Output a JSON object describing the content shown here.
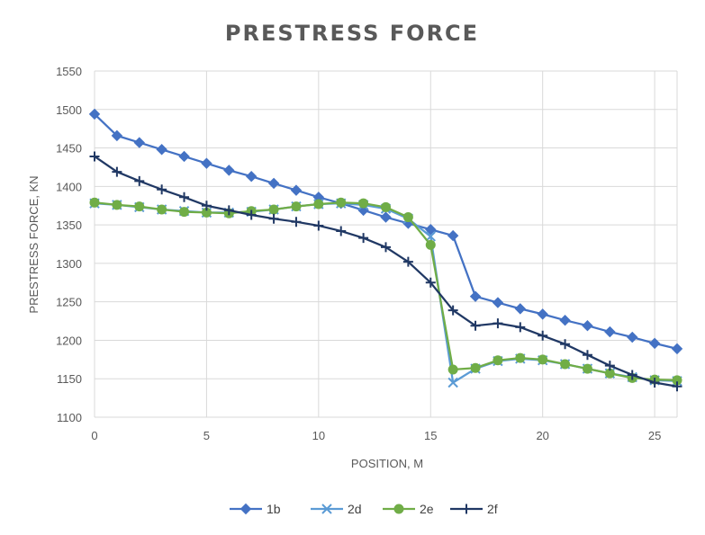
{
  "chart_data": {
    "type": "line",
    "title": "PRESTRESS FORCE",
    "xlabel": "POSITION, M",
    "ylabel": "PRESTRESS FORCE, KN",
    "xlim": [
      0,
      26
    ],
    "ylim": [
      1100,
      1550
    ],
    "x_ticks": [
      0,
      5,
      10,
      15,
      20,
      25
    ],
    "y_ticks": [
      1100,
      1150,
      1200,
      1250,
      1300,
      1350,
      1400,
      1450,
      1500,
      1550
    ],
    "grid": true,
    "legend_position": "bottom",
    "x": [
      0,
      1,
      2,
      3,
      4,
      5,
      6,
      7,
      8,
      9,
      10,
      11,
      12,
      13,
      14,
      15,
      16,
      17,
      18,
      19,
      20,
      21,
      22,
      23,
      24,
      25,
      26
    ],
    "series": [
      {
        "name": "1b",
        "color": "#4472C4",
        "marker": "diamond",
        "values": [
          1494,
          1466,
          1457,
          1448,
          1439,
          1430,
          1421,
          1413,
          1404,
          1395,
          1386,
          1378,
          1369,
          1360,
          1352,
          1344,
          1336,
          1257,
          1249,
          1241,
          1234,
          1226,
          1219,
          1211,
          1204,
          1196,
          1189
        ]
      },
      {
        "name": "2d",
        "color": "#5B9BD5",
        "marker": "x",
        "values": [
          1378,
          1376,
          1373,
          1370,
          1368,
          1366,
          1366,
          1367,
          1370,
          1374,
          1377,
          1378,
          1376,
          1371,
          1358,
          1335,
          1145,
          1163,
          1173,
          1176,
          1174,
          1169,
          1163,
          1157,
          1152,
          1148,
          1147
        ]
      },
      {
        "name": "2e",
        "color": "#70AD47",
        "marker": "circle",
        "values": [
          1379,
          1376,
          1374,
          1370,
          1367,
          1366,
          1365,
          1368,
          1370,
          1374,
          1377,
          1379,
          1378,
          1373,
          1360,
          1324,
          1162,
          1164,
          1174,
          1177,
          1175,
          1169,
          1163,
          1157,
          1151,
          1149,
          1148
        ]
      },
      {
        "name": "2f",
        "color": "#203864",
        "marker": "plus",
        "values": [
          1439,
          1419,
          1407,
          1396,
          1386,
          1375,
          1369,
          1363,
          1358,
          1354,
          1349,
          1342,
          1333,
          1321,
          1302,
          1275,
          1239,
          1219,
          1222,
          1217,
          1206,
          1195,
          1181,
          1167,
          1155,
          1145,
          1140
        ]
      }
    ]
  }
}
